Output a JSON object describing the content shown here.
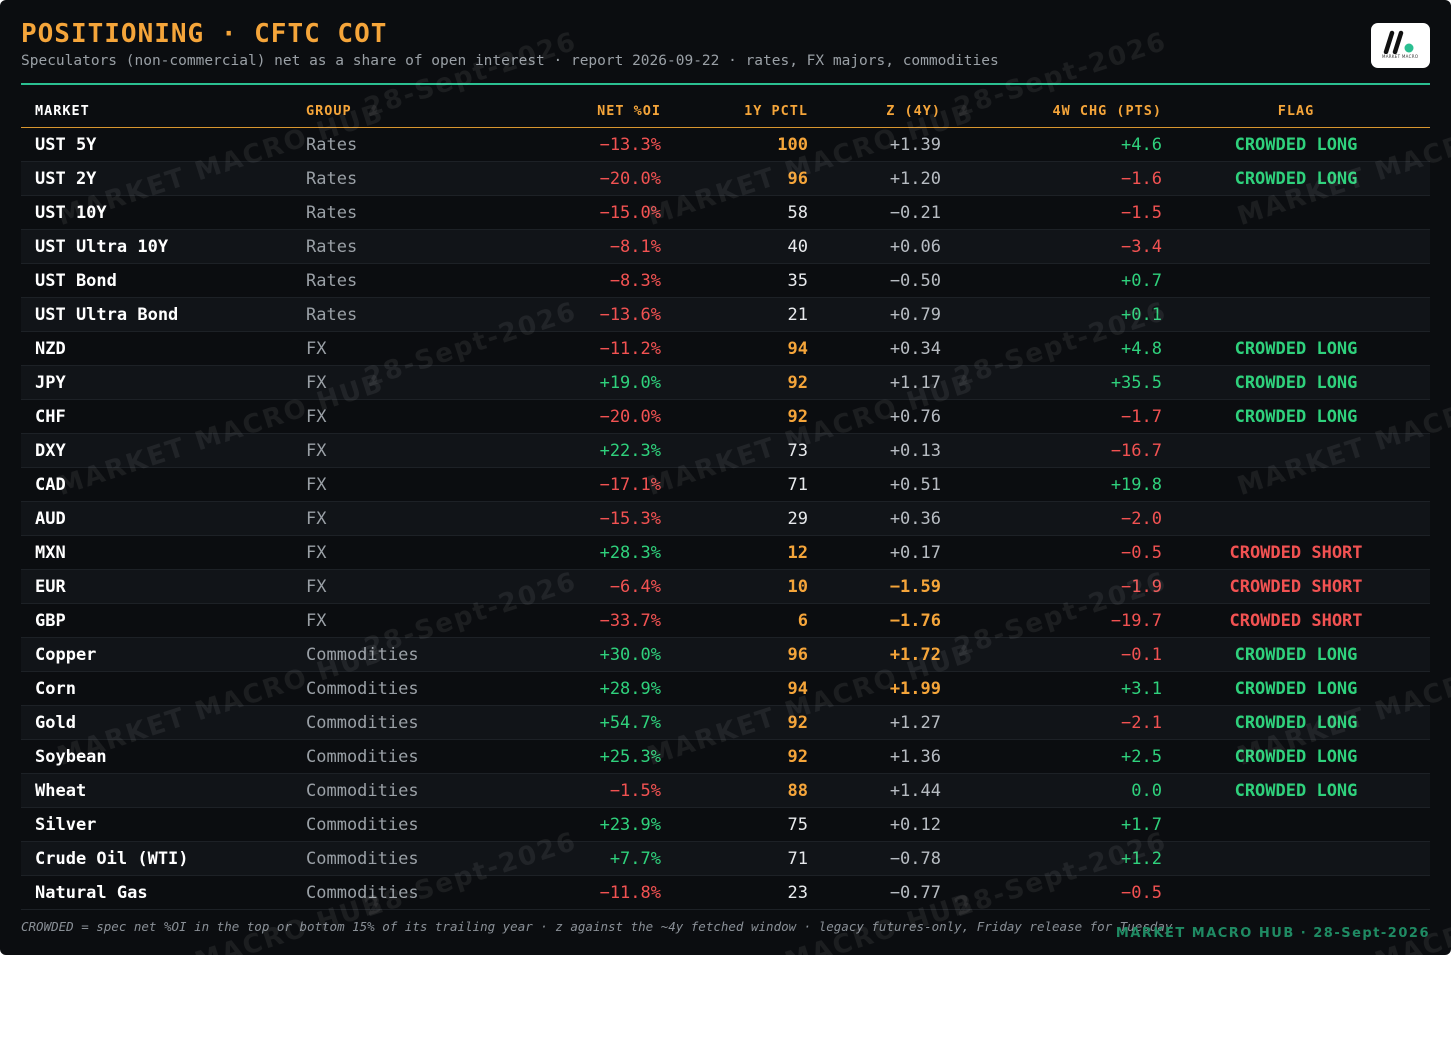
{
  "header": {
    "title": "POSITIONING · CFTC COT",
    "subtitle": "Speculators (non-commercial) net as a share of open interest · report 2026-09-22 · rates, FX majors, commodities"
  },
  "logo": {
    "alt": "MARKET MACRO"
  },
  "columns": [
    "MARKET",
    "GROUP",
    "NET %OI",
    "1Y PCTL",
    "Z (4Y)",
    "4W CHG (PTS)",
    "FLAG"
  ],
  "rows": [
    {
      "market": "UST 5Y",
      "group": "Rates",
      "net": "−13.3%",
      "pctl": "100",
      "z": "+1.39",
      "chg": "+4.6",
      "flag": "CROWDED LONG"
    },
    {
      "market": "UST 2Y",
      "group": "Rates",
      "net": "−20.0%",
      "pctl": "96",
      "z": "+1.20",
      "chg": "−1.6",
      "flag": "CROWDED LONG"
    },
    {
      "market": "UST 10Y",
      "group": "Rates",
      "net": "−15.0%",
      "pctl": "58",
      "z": "−0.21",
      "chg": "−1.5",
      "flag": ""
    },
    {
      "market": "UST Ultra 10Y",
      "group": "Rates",
      "net": "−8.1%",
      "pctl": "40",
      "z": "+0.06",
      "chg": "−3.4",
      "flag": ""
    },
    {
      "market": "UST Bond",
      "group": "Rates",
      "net": "−8.3%",
      "pctl": "35",
      "z": "−0.50",
      "chg": "+0.7",
      "flag": ""
    },
    {
      "market": "UST Ultra Bond",
      "group": "Rates",
      "net": "−13.6%",
      "pctl": "21",
      "z": "+0.79",
      "chg": "+0.1",
      "flag": ""
    },
    {
      "market": "NZD",
      "group": "FX",
      "net": "−11.2%",
      "pctl": "94",
      "z": "+0.34",
      "chg": "+4.8",
      "flag": "CROWDED LONG"
    },
    {
      "market": "JPY",
      "group": "FX",
      "net": "+19.0%",
      "pctl": "92",
      "z": "+1.17",
      "chg": "+35.5",
      "flag": "CROWDED LONG"
    },
    {
      "market": "CHF",
      "group": "FX",
      "net": "−20.0%",
      "pctl": "92",
      "z": "+0.76",
      "chg": "−1.7",
      "flag": "CROWDED LONG"
    },
    {
      "market": "DXY",
      "group": "FX",
      "net": "+22.3%",
      "pctl": "73",
      "z": "+0.13",
      "chg": "−16.7",
      "flag": ""
    },
    {
      "market": "CAD",
      "group": "FX",
      "net": "−17.1%",
      "pctl": "71",
      "z": "+0.51",
      "chg": "+19.8",
      "flag": ""
    },
    {
      "market": "AUD",
      "group": "FX",
      "net": "−15.3%",
      "pctl": "29",
      "z": "+0.36",
      "chg": "−2.0",
      "flag": ""
    },
    {
      "market": "MXN",
      "group": "FX",
      "net": "+28.3%",
      "pctl": "12",
      "z": "+0.17",
      "chg": "−0.5",
      "flag": "CROWDED SHORT"
    },
    {
      "market": "EUR",
      "group": "FX",
      "net": "−6.4%",
      "pctl": "10",
      "z": "−1.59",
      "chg": "−1.9",
      "flag": "CROWDED SHORT"
    },
    {
      "market": "GBP",
      "group": "FX",
      "net": "−33.7%",
      "pctl": "6",
      "z": "−1.76",
      "chg": "−19.7",
      "flag": "CROWDED SHORT"
    },
    {
      "market": "Copper",
      "group": "Commodities",
      "net": "+30.0%",
      "pctl": "96",
      "z": "+1.72",
      "chg": "−0.1",
      "flag": "CROWDED LONG"
    },
    {
      "market": "Corn",
      "group": "Commodities",
      "net": "+28.9%",
      "pctl": "94",
      "z": "+1.99",
      "chg": "+3.1",
      "flag": "CROWDED LONG"
    },
    {
      "market": "Gold",
      "group": "Commodities",
      "net": "+54.7%",
      "pctl": "92",
      "z": "+1.27",
      "chg": "−2.1",
      "flag": "CROWDED LONG"
    },
    {
      "market": "Soybean",
      "group": "Commodities",
      "net": "+25.3%",
      "pctl": "92",
      "z": "+1.36",
      "chg": "+2.5",
      "flag": "CROWDED LONG"
    },
    {
      "market": "Wheat",
      "group": "Commodities",
      "net": "−1.5%",
      "pctl": "88",
      "z": "+1.44",
      "chg": "0.0",
      "flag": "CROWDED LONG"
    },
    {
      "market": "Silver",
      "group": "Commodities",
      "net": "+23.9%",
      "pctl": "75",
      "z": "+0.12",
      "chg": "+1.7",
      "flag": ""
    },
    {
      "market": "Crude Oil (WTI)",
      "group": "Commodities",
      "net": "+7.7%",
      "pctl": "71",
      "z": "−0.78",
      "chg": "+1.2",
      "flag": ""
    },
    {
      "market": "Natural Gas",
      "group": "Commodities",
      "net": "−11.8%",
      "pctl": "23",
      "z": "−0.77",
      "chg": "−0.5",
      "flag": ""
    }
  ],
  "footer": {
    "note": "CROWDED = spec net %OI in the top or bottom 15% of its trailing year · z against the ~4y fetched window · legacy futures-only, Friday release for Tuesday",
    "brand": "MARKET MACRO HUB · 28-Sept-2026"
  },
  "watermark": {
    "line1": "MARKET MACRO HUB",
    "line2": "28-Sept-2026"
  },
  "colors": {
    "background": "#0b0d10",
    "accent_orange": "#f5a53a",
    "accent_green": "#2bbf91",
    "positive": "#2fd17c",
    "negative": "#f25252"
  }
}
